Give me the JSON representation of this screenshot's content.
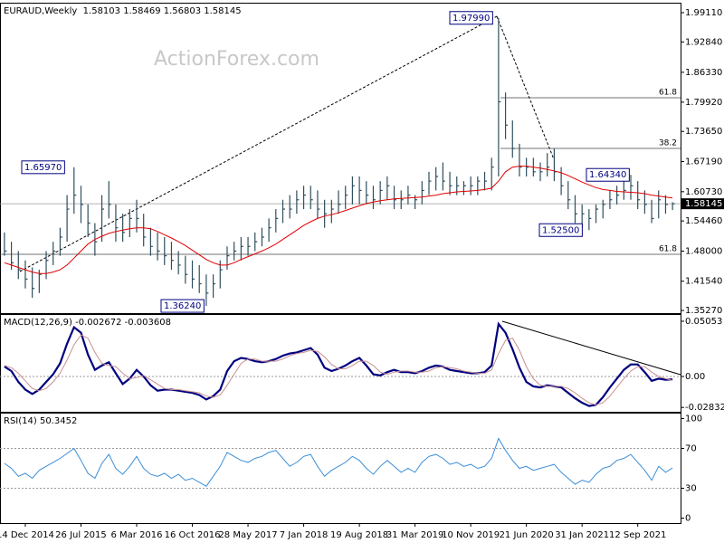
{
  "chart_data": [
    {
      "type": "ohlc",
      "title": "EURAUD,Weekly  1.58103 1.58469 1.56803 1.58145",
      "watermark": "ActionForex.com",
      "categories": [
        null,
        null,
        null,
        "14 Dec 2014",
        null,
        null,
        null,
        null,
        null,
        null,
        null,
        "26 Jul 2015",
        null,
        null,
        null,
        null,
        null,
        null,
        null,
        "6 Mar 2016",
        null,
        null,
        null,
        null,
        null,
        null,
        null,
        "16 Oct 2016",
        null,
        null,
        null,
        null,
        null,
        null,
        null,
        "28 May 2017",
        null,
        null,
        null,
        null,
        null,
        null,
        null,
        "7 Jan 2018",
        null,
        null,
        null,
        null,
        null,
        null,
        null,
        "19 Aug 2018",
        null,
        null,
        null,
        null,
        null,
        null,
        null,
        "31 Mar 2019",
        null,
        null,
        null,
        null,
        null,
        null,
        null,
        "10 Nov 2019",
        null,
        null,
        null,
        null,
        null,
        null,
        null,
        "21 Jun 2020",
        null,
        null,
        null,
        null,
        null,
        null,
        null,
        "31 Jan 2021",
        null,
        null,
        null,
        null,
        null,
        null,
        null,
        "12 Sep 2021",
        null,
        null,
        null,
        null,
        null
      ],
      "color": "#2f4f5f",
      "high": [
        1.52,
        1.5,
        1.48,
        1.46,
        1.445,
        1.44,
        1.48,
        1.5,
        1.53,
        1.6,
        1.6597,
        1.62,
        1.58,
        1.54,
        1.6,
        1.63,
        1.58,
        1.56,
        1.57,
        1.59,
        1.56,
        1.53,
        1.52,
        1.51,
        1.5,
        1.48,
        1.47,
        1.46,
        1.45,
        1.43,
        1.43,
        1.46,
        1.49,
        1.5,
        1.51,
        1.51,
        1.52,
        1.53,
        1.55,
        1.57,
        1.59,
        1.6,
        1.61,
        1.62,
        1.62,
        1.61,
        1.59,
        1.59,
        1.61,
        1.62,
        1.64,
        1.64,
        1.63,
        1.62,
        1.63,
        1.64,
        1.62,
        1.61,
        1.62,
        1.6,
        1.63,
        1.65,
        1.66,
        1.67,
        1.65,
        1.64,
        1.63,
        1.64,
        1.64,
        1.65,
        1.68,
        1.9799,
        1.82,
        1.76,
        1.71,
        1.68,
        1.68,
        1.67,
        1.69,
        1.7,
        1.66,
        1.63,
        1.6,
        1.58,
        1.57,
        1.58,
        1.59,
        1.61,
        1.62,
        1.63,
        1.6434,
        1.63,
        1.61,
        1.59,
        1.61,
        1.6,
        1.58469
      ],
      "low": [
        1.47,
        1.44,
        1.42,
        1.4,
        1.38,
        1.39,
        1.42,
        1.45,
        1.47,
        1.5,
        1.56,
        1.54,
        1.51,
        1.47,
        1.5,
        1.55,
        1.5,
        1.5,
        1.51,
        1.52,
        1.49,
        1.47,
        1.46,
        1.45,
        1.44,
        1.43,
        1.41,
        1.4,
        1.39,
        1.3624,
        1.38,
        1.4,
        1.44,
        1.46,
        1.46,
        1.47,
        1.48,
        1.49,
        1.5,
        1.52,
        1.54,
        1.55,
        1.56,
        1.57,
        1.57,
        1.55,
        1.53,
        1.54,
        1.56,
        1.57,
        1.58,
        1.58,
        1.58,
        1.57,
        1.58,
        1.59,
        1.57,
        1.57,
        1.58,
        1.57,
        1.58,
        1.6,
        1.61,
        1.61,
        1.6,
        1.6,
        1.6,
        1.6,
        1.6,
        1.61,
        1.61,
        1.64,
        1.72,
        1.68,
        1.64,
        1.64,
        1.64,
        1.63,
        1.64,
        1.63,
        1.6,
        1.57,
        1.54,
        1.53,
        1.525,
        1.54,
        1.55,
        1.57,
        1.58,
        1.59,
        1.59,
        1.57,
        1.56,
        1.54,
        1.55,
        1.56,
        1.56803
      ],
      "close": [
        1.48,
        1.455,
        1.44,
        1.42,
        1.4,
        1.43,
        1.46,
        1.48,
        1.51,
        1.57,
        1.6,
        1.58,
        1.54,
        1.5,
        1.57,
        1.58,
        1.53,
        1.52,
        1.55,
        1.55,
        1.51,
        1.49,
        1.48,
        1.47,
        1.46,
        1.45,
        1.43,
        1.42,
        1.41,
        1.39,
        1.41,
        1.44,
        1.47,
        1.48,
        1.49,
        1.49,
        1.5,
        1.51,
        1.53,
        1.55,
        1.57,
        1.57,
        1.59,
        1.6,
        1.59,
        1.57,
        1.56,
        1.57,
        1.58,
        1.6,
        1.62,
        1.61,
        1.6,
        1.59,
        1.61,
        1.62,
        1.59,
        1.59,
        1.6,
        1.59,
        1.61,
        1.63,
        1.64,
        1.63,
        1.62,
        1.62,
        1.62,
        1.62,
        1.63,
        1.63,
        1.66,
        1.8,
        1.75,
        1.7,
        1.66,
        1.66,
        1.65,
        1.65,
        1.66,
        1.65,
        1.62,
        1.59,
        1.56,
        1.56,
        1.55,
        1.57,
        1.58,
        1.59,
        1.6,
        1.61,
        1.62,
        1.59,
        1.58,
        1.55,
        1.59,
        1.58,
        1.58145
      ],
      "series": [
        {
          "color": "#e00000",
          "values": [
            1.455,
            1.45,
            1.445,
            1.44,
            1.435,
            1.432,
            1.432,
            1.435,
            1.44,
            1.45,
            1.465,
            1.48,
            1.495,
            1.505,
            1.512,
            1.518,
            1.522,
            1.525,
            1.528,
            1.53,
            1.53,
            1.528,
            1.522,
            1.515,
            1.508,
            1.5,
            1.492,
            1.482,
            1.472,
            1.462,
            1.455,
            1.45,
            1.45,
            1.455,
            1.462,
            1.468,
            1.474,
            1.48,
            1.487,
            1.495,
            1.505,
            1.515,
            1.525,
            1.535,
            1.543,
            1.55,
            1.555,
            1.558,
            1.562,
            1.567,
            1.572,
            1.577,
            1.582,
            1.585,
            1.588,
            1.59,
            1.592,
            1.593,
            1.594,
            1.595,
            1.596,
            1.598,
            1.6,
            1.603,
            1.605,
            1.607,
            1.608,
            1.609,
            1.61,
            1.612,
            1.615,
            1.63,
            1.65,
            1.66,
            1.662,
            1.662,
            1.66,
            1.658,
            1.655,
            1.652,
            1.648,
            1.642,
            1.635,
            1.628,
            1.622,
            1.616,
            1.612,
            1.61,
            1.608,
            1.607,
            1.606,
            1.605,
            1.603,
            1.6,
            1.598,
            1.596,
            1.594
          ]
        }
      ],
      "ylim": [
        1.347,
        2.0105
      ],
      "yticks": [
        {
          "value": 1.9911,
          "label": "1.99110"
        },
        {
          "value": 1.9284,
          "label": "1.92840"
        },
        {
          "value": 1.8633,
          "label": "1.86330"
        },
        {
          "value": 1.7992,
          "label": "1.79920"
        },
        {
          "value": 1.7365,
          "label": "1.73650"
        },
        {
          "value": 1.6719,
          "label": "1.67190"
        },
        {
          "value": 1.6073,
          "label": "1.60730"
        },
        {
          "value": 1.5446,
          "label": "1.54460"
        },
        {
          "value": 1.48,
          "label": "1.48000"
        },
        {
          "value": 1.4154,
          "label": "1.41540"
        },
        {
          "value": 1.3527,
          "label": "1.35270"
        }
      ],
      "annotations": [
        {
          "value": 1.9799,
          "label": "1.97990"
        },
        {
          "value": 1.6597,
          "label": "1.65970"
        },
        {
          "value": 1.3624,
          "label": "1.36240"
        },
        {
          "value": 1.525,
          "label": "1.52500"
        },
        {
          "value": 1.6434,
          "label": "1.64340"
        }
      ],
      "fib_levels": [
        {
          "value": 1.8087,
          "label": "61.8"
        },
        {
          "value": 1.7001,
          "label": "38.2"
        },
        {
          "value": 1.4731,
          "label": "61.8"
        }
      ],
      "last_price": {
        "value": 1.58145,
        "label": "1.58145"
      }
    },
    {
      "type": "line",
      "title": "MACD(12,26,9) -0.002672 -0.003608",
      "series": [
        {
          "color": "#000080",
          "values": [
            0.009,
            0.005,
            -0.005,
            -0.012,
            -0.016,
            -0.012,
            -0.005,
            0.002,
            0.012,
            0.03,
            0.045,
            0.04,
            0.02,
            0.006,
            0.01,
            0.013,
            0.003,
            -0.007,
            -0.002,
            0.006,
            0.0,
            -0.008,
            -0.013,
            -0.012,
            -0.012,
            -0.013,
            -0.014,
            -0.015,
            -0.017,
            -0.021,
            -0.018,
            -0.012,
            0.005,
            0.014,
            0.017,
            0.016,
            0.014,
            0.013,
            0.014,
            0.016,
            0.019,
            0.021,
            0.022,
            0.024,
            0.026,
            0.02,
            0.008,
            0.005,
            0.007,
            0.01,
            0.014,
            0.017,
            0.01,
            0.002,
            0.001,
            0.004,
            0.006,
            0.004,
            0.004,
            0.003,
            0.005,
            0.008,
            0.01,
            0.009,
            0.006,
            0.005,
            0.004,
            0.003,
            0.003,
            0.004,
            0.01,
            0.048,
            0.04,
            0.025,
            0.008,
            -0.005,
            -0.009,
            -0.01,
            -0.008,
            -0.009,
            -0.01,
            -0.015,
            -0.02,
            -0.024,
            -0.027,
            -0.026,
            -0.019,
            -0.01,
            -0.002,
            0.006,
            0.011,
            0.011,
            0.004,
            -0.004,
            -0.002,
            -0.003,
            -0.002672
          ]
        },
        {
          "color": "#c89090",
          "values": [
            0.01,
            0.008,
            0.003,
            -0.004,
            -0.011,
            -0.013,
            -0.011,
            -0.005,
            0.003,
            0.015,
            0.029,
            0.038,
            0.035,
            0.022,
            0.012,
            0.01,
            0.009,
            0.003,
            -0.002,
            -0.001,
            0.001,
            -0.003,
            -0.007,
            -0.011,
            -0.012,
            -0.012,
            -0.013,
            -0.014,
            -0.015,
            -0.018,
            -0.019,
            -0.017,
            -0.008,
            0.002,
            0.012,
            0.016,
            0.016,
            0.014,
            0.014,
            0.014,
            0.016,
            0.019,
            0.021,
            0.022,
            0.024,
            0.023,
            0.018,
            0.011,
            0.007,
            0.007,
            0.01,
            0.014,
            0.014,
            0.01,
            0.004,
            0.002,
            0.004,
            0.005,
            0.005,
            0.004,
            0.004,
            0.005,
            0.008,
            0.009,
            0.008,
            0.007,
            0.005,
            0.004,
            0.003,
            0.003,
            0.006,
            0.021,
            0.033,
            0.035,
            0.024,
            0.009,
            -0.002,
            -0.008,
            -0.009,
            -0.009,
            -0.009,
            -0.011,
            -0.015,
            -0.02,
            -0.024,
            -0.026,
            -0.024,
            -0.018,
            -0.01,
            -0.002,
            0.005,
            0.009,
            0.009,
            0.004,
            0.0,
            -0.002,
            -0.003608
          ]
        }
      ],
      "ylim": [
        -0.0323,
        0.0563
      ],
      "yticks": [
        0.05053,
        {
          "value": 0,
          "label": "0.00"
        },
        -0.028323
      ],
      "levels": [
        0
      ]
    },
    {
      "type": "line",
      "title": "RSI(14) 50.3452",
      "series": [
        {
          "color": "#3b8ed8",
          "values": [
            55,
            50,
            42,
            45,
            40,
            48,
            52,
            56,
            60,
            65,
            70,
            58,
            45,
            40,
            55,
            64,
            50,
            44,
            52,
            62,
            50,
            44,
            42,
            45,
            40,
            44,
            38,
            40,
            36,
            32,
            42,
            52,
            66,
            62,
            58,
            56,
            60,
            62,
            66,
            68,
            60,
            52,
            56,
            62,
            64,
            52,
            42,
            48,
            52,
            56,
            62,
            58,
            50,
            44,
            52,
            58,
            52,
            46,
            50,
            46,
            56,
            62,
            64,
            60,
            54,
            56,
            52,
            54,
            50,
            52,
            60,
            80,
            68,
            58,
            50,
            52,
            48,
            50,
            52,
            54,
            46,
            40,
            34,
            38,
            36,
            44,
            50,
            52,
            58,
            60,
            64,
            56,
            48,
            38,
            52,
            46,
            50.3452
          ]
        }
      ],
      "ylim": [
        -5,
        105
      ],
      "yticks": [
        100,
        70,
        30,
        0
      ],
      "levels": [
        70,
        30
      ]
    }
  ]
}
